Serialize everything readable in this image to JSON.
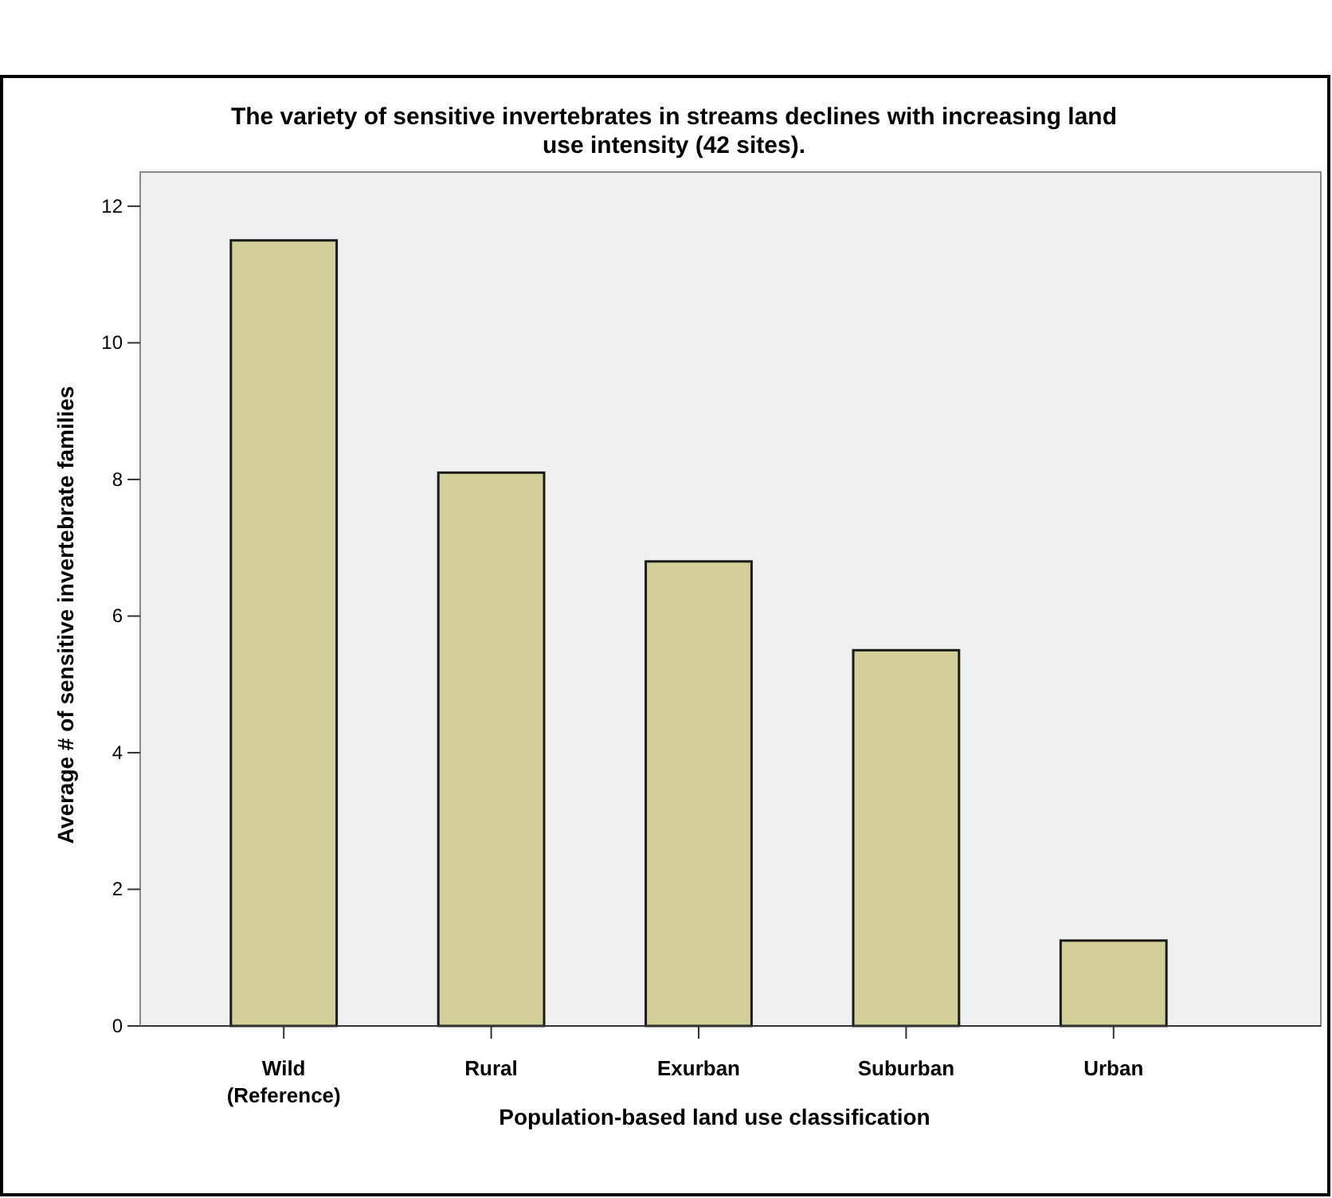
{
  "chart_data": {
    "type": "bar",
    "title": "The variety of sensitive invertebrates in streams declines with increasing land use intensity (42 sites).",
    "xlabel": "Population-based land use classification",
    "ylabel": "Average # of sensitive invertebrate families",
    "categories": [
      "Wild\n(Reference)",
      "Rural",
      "Exurban",
      "Suburban",
      "Urban"
    ],
    "values": [
      11.5,
      8.1,
      6.8,
      5.5,
      1.25
    ],
    "color": "#d3cf98",
    "ylim": [
      0,
      12.5
    ],
    "yticks": [
      0,
      2,
      4,
      6,
      8,
      10,
      12
    ],
    "grid": false
  }
}
